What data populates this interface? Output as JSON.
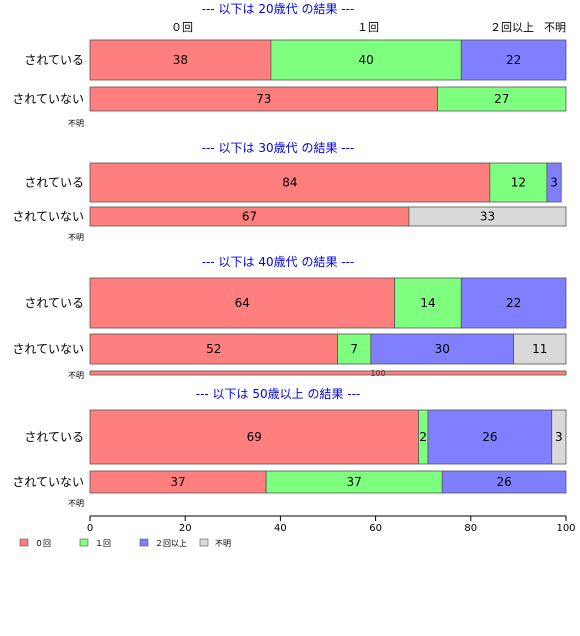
{
  "chart_data": {
    "type": "bar",
    "orientation": "horizontal",
    "stacked": "percent",
    "xlim": [
      0,
      100
    ],
    "x_ticks": [
      0,
      20,
      40,
      60,
      80,
      100
    ],
    "categories_header": [
      "０回",
      "１回",
      "２回以上",
      "不明"
    ],
    "legend": {
      "placement": "bottom-left",
      "entries": [
        {
          "label": "０回",
          "color": "#FF7F7F"
        },
        {
          "label": "１回",
          "color": "#7FFF7F"
        },
        {
          "label": "２回以上",
          "color": "#7F7FFF"
        },
        {
          "label": "不明",
          "color": "#D9D9D9"
        }
      ]
    },
    "panels": [
      {
        "title": "--- 以下は 20歳代 の結果 ---",
        "show_header": true,
        "rows": [
          {
            "label": "されている",
            "values": [
              38,
              40,
              22,
              0
            ]
          },
          {
            "label": "されていない",
            "values": [
              73,
              27,
              0,
              0
            ]
          },
          {
            "label": "不明",
            "values": [
              0,
              0,
              0,
              0
            ],
            "value_label": ""
          }
        ]
      },
      {
        "title": "--- 以下は 30歳代 の結果 ---",
        "show_header": false,
        "rows": [
          {
            "label": "されている",
            "values": [
              84,
              12,
              3,
              0
            ]
          },
          {
            "label": "されていない",
            "values": [
              67,
              0,
              0,
              33
            ]
          },
          {
            "label": "不明",
            "values": [
              0,
              0,
              0,
              0
            ],
            "value_label": ""
          }
        ]
      },
      {
        "title": "--- 以下は 40歳代 の結果 ---",
        "show_header": false,
        "rows": [
          {
            "label": "されている",
            "values": [
              64,
              14,
              22,
              0
            ]
          },
          {
            "label": "されていない",
            "values": [
              52,
              7,
              30,
              11
            ]
          },
          {
            "label": "不明",
            "values": [
              100,
              0,
              0,
              0
            ],
            "value_label": "100"
          }
        ]
      },
      {
        "title": "--- 以下は 50歳以上 の結果 ---",
        "show_header": false,
        "rows": [
          {
            "label": "されている",
            "values": [
              69,
              2,
              26,
              3
            ]
          },
          {
            "label": "されていない",
            "values": [
              37,
              37,
              26,
              0
            ]
          },
          {
            "label": "不明",
            "values": [
              0,
              0,
              0,
              0
            ],
            "value_label": ""
          }
        ]
      }
    ]
  }
}
